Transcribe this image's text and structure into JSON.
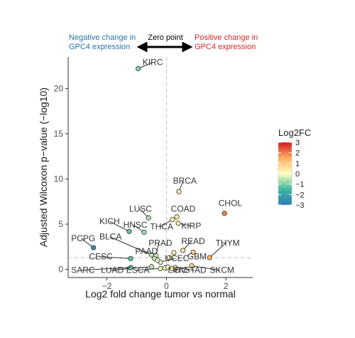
{
  "chart_data": {
    "type": "scatter",
    "xlabel": "Log2 fold change tumor vs normal",
    "ylabel": "Adjusted Wilcoxon p−value (−log10)",
    "xlim": [
      -3.3,
      2.9
    ],
    "ylim": [
      -0.9,
      23.5
    ],
    "x_ticks": [
      -2,
      0,
      2
    ],
    "y_ticks": [
      0,
      5,
      10,
      15,
      20
    ],
    "x_tick_labels": [
      "−2",
      "0",
      "2"
    ],
    "y_tick_labels": [
      "0",
      "5",
      "10",
      "15",
      "20"
    ],
    "grid": false,
    "zero_line_x": 0,
    "threshold_line_y": 1.3,
    "color_scale": {
      "title": "Log2FC",
      "min": -3,
      "max": 3,
      "ticks": [
        3,
        2,
        1,
        0,
        -1,
        -2,
        -3
      ],
      "tick_labels": [
        "3",
        "2",
        "1",
        "0",
        "−1",
        "−2",
        "−3"
      ],
      "stops": [
        "#2c7bb6",
        "#3fb8a0",
        "#ffffbf",
        "#fdae61",
        "#d7191c"
      ],
      "legend_position": "right"
    },
    "annotations": {
      "left": [
        "Negative change in",
        "GPC4 expression"
      ],
      "center": "Zero point",
      "right": [
        "Positive change in",
        "GPC4 expression"
      ],
      "left_color": "#1f77b4",
      "right_color": "#d62728"
    },
    "points": [
      {
        "label": "KIRC",
        "x": -0.95,
        "y": 22.2,
        "lx": -0.8,
        "ly": 22.6
      },
      {
        "label": "BRCA",
        "x": 0.42,
        "y": 8.6,
        "lx": 0.22,
        "ly": 9.5
      },
      {
        "label": "CHOL",
        "x": 1.95,
        "y": 6.2,
        "lx": 1.75,
        "ly": 7.0
      },
      {
        "label": "LUSC",
        "x": -0.6,
        "y": 5.7,
        "lx": -1.25,
        "ly": 6.4
      },
      {
        "label": "COAD",
        "x": 0.35,
        "y": 5.8,
        "lx": 0.15,
        "ly": 6.4
      },
      {
        "label": "KIRP",
        "x": 0.4,
        "y": 5.1,
        "lx": 0.5,
        "ly": 4.5
      },
      {
        "label": "THCA",
        "x": 0.2,
        "y": 5.5,
        "lx": -0.55,
        "ly": 4.4
      },
      {
        "label": "HNSC",
        "x": -0.75,
        "y": 4.1,
        "lx": -1.45,
        "ly": 4.6
      },
      {
        "label": "KICH",
        "x": -1.25,
        "y": 4.2,
        "lx": -2.25,
        "ly": 5.0
      },
      {
        "label": "BLCA",
        "x": -0.5,
        "y": 1.6,
        "lx": -2.25,
        "ly": 3.3
      },
      {
        "label": "PCPG",
        "x": -2.45,
        "y": 2.4,
        "lx": -3.2,
        "ly": 3.1
      },
      {
        "label": "READ",
        "x": 0.55,
        "y": 2.1,
        "lx": 0.5,
        "ly": 2.8
      },
      {
        "label": "THYM",
        "x": 1.45,
        "y": 1.3,
        "lx": 1.65,
        "ly": 2.6
      },
      {
        "label": "PRAD",
        "x": -0.35,
        "y": 1.5,
        "lx": -0.6,
        "ly": 2.6
      },
      {
        "label": "PAAD",
        "x": -0.4,
        "y": 1.2,
        "lx": -1.05,
        "ly": 1.7
      },
      {
        "label": "GBM",
        "x": 0.9,
        "y": 1.9,
        "lx": 0.7,
        "ly": 1.1
      },
      {
        "label": "CESC",
        "x": -1.2,
        "y": 1.2,
        "lx": -2.6,
        "ly": 1.1
      },
      {
        "label": "UCEC",
        "x": -0.2,
        "y": 0.8,
        "lx": -0.05,
        "ly": 0.9
      },
      {
        "label": "SARC",
        "x": -1.2,
        "y": 0.2,
        "lx": -3.2,
        "ly": -0.4
      },
      {
        "label": "LUAD",
        "x": -0.5,
        "y": 0.3,
        "lx": -2.2,
        "ly": -0.4
      },
      {
        "label": "ESCA",
        "x": -0.2,
        "y": 0.1,
        "lx": -1.35,
        "ly": -0.4
      },
      {
        "label": "LIHC",
        "x": -0.05,
        "y": 0.15,
        "lx": 0.05,
        "ly": -0.4
      },
      {
        "label": "OV",
        "x": 0.2,
        "y": 0.1,
        "lx": 0.25,
        "ly": -0.4
      },
      {
        "label": "STAD",
        "x": 0.3,
        "y": 0.2,
        "lx": 0.6,
        "ly": -0.4
      },
      {
        "label": "SKCM",
        "x": 0.85,
        "y": 0.4,
        "lx": 1.45,
        "ly": -0.4
      },
      {
        "label": "",
        "x": 0.25,
        "y": 1.85
      },
      {
        "label": "",
        "x": 0.1,
        "y": 1.3
      },
      {
        "label": "",
        "x": -0.3,
        "y": 1.0
      },
      {
        "label": "",
        "x": 0.05,
        "y": 0.25
      }
    ]
  }
}
